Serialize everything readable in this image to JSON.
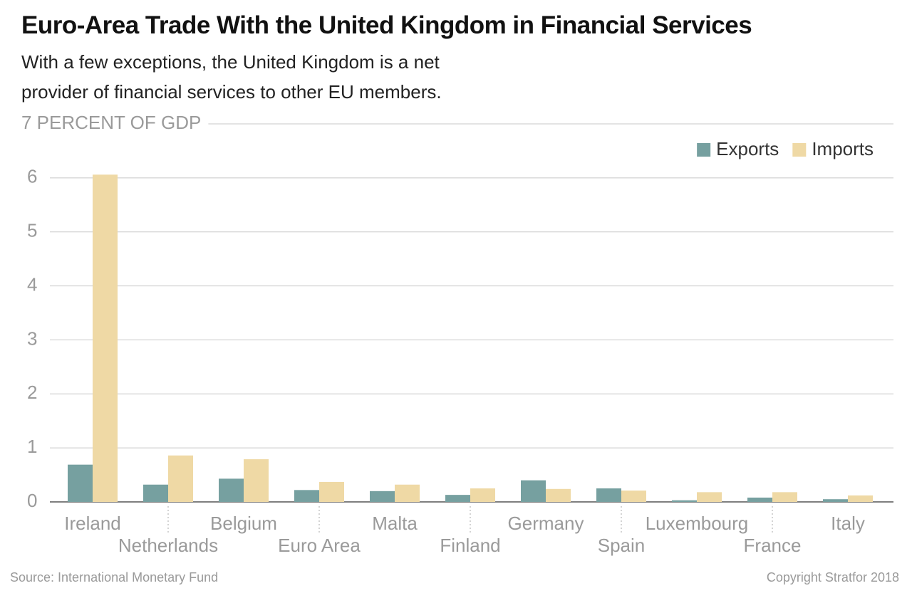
{
  "chart_data": {
    "type": "bar",
    "title": "Euro-Area Trade With the United Kingdom in Financial Services",
    "subtitle": "With a few exceptions, the United Kingdom is a net provider of financial services to other EU members.",
    "categories": [
      "Ireland",
      "Netherlands",
      "Belgium",
      "Euro Area",
      "Malta",
      "Finland",
      "Germany",
      "Spain",
      "Luxembourg",
      "France",
      "Italy"
    ],
    "series": [
      {
        "name": "Exports",
        "color": "#76a0a0",
        "values": [
          0.69,
          0.32,
          0.43,
          0.22,
          0.2,
          0.13,
          0.4,
          0.25,
          0.03,
          0.08,
          0.05
        ]
      },
      {
        "name": "Imports",
        "color": "#efd9a5",
        "values": [
          6.06,
          0.86,
          0.79,
          0.37,
          0.32,
          0.25,
          0.24,
          0.21,
          0.18,
          0.18,
          0.12
        ]
      }
    ],
    "ylim": [
      0,
      7
    ],
    "yticks": [
      0,
      1,
      2,
      3,
      4,
      5,
      6,
      {
        "value": 7,
        "label": "7 PERCENT OF GDP"
      }
    ],
    "grid": true,
    "legend": "upper right",
    "source": "Source: International Monetary Fund",
    "copyright": "Copyright Stratfor 2018"
  }
}
